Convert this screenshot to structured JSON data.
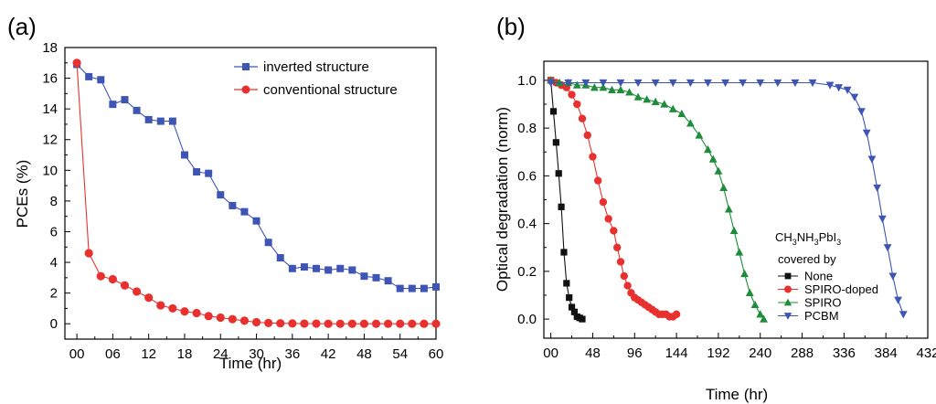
{
  "chart_data": [
    {
      "panel_label": "(a)",
      "type": "line",
      "xlabel": "Time (hr)",
      "ylabel": "PCEs (%)",
      "xlim": [
        -2,
        60
      ],
      "ylim": [
        -1,
        18
      ],
      "xticks": [
        "00",
        "06",
        "12",
        "18",
        "24",
        "30",
        "36",
        "42",
        "48",
        "54",
        "60"
      ],
      "yticks": [
        "0",
        "2",
        "4",
        "6",
        "8",
        "10",
        "12",
        "14",
        "16",
        "18"
      ],
      "legend_position": "top-right",
      "series": [
        {
          "name": "inverted structure",
          "color": "#3F55B5",
          "marker": "square",
          "x": [
            0,
            2,
            4,
            6,
            8,
            10,
            12,
            14,
            16,
            18,
            20,
            22,
            24,
            26,
            28,
            30,
            32,
            34,
            36,
            38,
            40,
            42,
            44,
            46,
            48,
            50,
            52,
            54,
            56,
            58,
            60
          ],
          "y": [
            16.9,
            16.1,
            15.9,
            14.3,
            14.6,
            13.9,
            13.3,
            13.2,
            13.2,
            11.0,
            9.9,
            9.8,
            8.4,
            7.7,
            7.3,
            6.7,
            5.3,
            4.3,
            3.6,
            3.7,
            3.6,
            3.5,
            3.6,
            3.5,
            3.1,
            3.0,
            2.8,
            2.3,
            2.3,
            2.3,
            2.4
          ]
        },
        {
          "name": "conventional structure",
          "color": "#E8312F",
          "marker": "circle",
          "x": [
            0,
            2,
            4,
            6,
            8,
            10,
            12,
            14,
            16,
            18,
            20,
            22,
            24,
            26,
            28,
            30,
            32,
            34,
            36,
            38,
            40,
            42,
            44,
            46,
            48,
            50,
            52,
            54,
            56,
            58,
            60
          ],
          "y": [
            17.0,
            4.6,
            3.1,
            2.9,
            2.5,
            2.1,
            1.7,
            1.2,
            1.0,
            0.8,
            0.7,
            0.5,
            0.4,
            0.3,
            0.2,
            0.1,
            0.05,
            0.03,
            0.02,
            0.01,
            0.01,
            0,
            0,
            0,
            0,
            0,
            0,
            0,
            0,
            0,
            0
          ]
        }
      ]
    },
    {
      "panel_label": "(b)",
      "type": "line",
      "xlabel": "Time (hr)",
      "ylabel": "Optical degradation (norm)",
      "xlim": [
        -8,
        432
      ],
      "ylim": [
        -0.08,
        1.08
      ],
      "xticks": [
        "00",
        "48",
        "96",
        "144",
        "192",
        "240",
        "288",
        "336",
        "384",
        "432"
      ],
      "yticks": [
        "0.0",
        "0.2",
        "0.4",
        "0.6",
        "0.8",
        "1.0"
      ],
      "legend_title": "CH3NH3PbI3",
      "legend_subtitle": "covered by",
      "legend_position": "bottom-right",
      "series": [
        {
          "name": "None",
          "color": "#111111",
          "marker": "square",
          "x": [
            0,
            3,
            6,
            9,
            12,
            15,
            18,
            21,
            24,
            27,
            30,
            33,
            36
          ],
          "y": [
            1.0,
            0.87,
            0.74,
            0.61,
            0.47,
            0.28,
            0.15,
            0.09,
            0.05,
            0.03,
            0.01,
            0.005,
            0.0
          ]
        },
        {
          "name": "SPIRO-doped",
          "color": "#E8312F",
          "marker": "circle",
          "x": [
            0,
            6,
            12,
            18,
            24,
            30,
            36,
            42,
            48,
            54,
            60,
            66,
            72,
            76,
            80,
            84,
            88,
            92,
            96,
            100,
            104,
            108,
            112,
            116,
            120,
            124,
            128,
            132,
            136,
            140,
            144
          ],
          "y": [
            1.0,
            0.99,
            0.98,
            0.97,
            0.94,
            0.9,
            0.84,
            0.77,
            0.68,
            0.58,
            0.49,
            0.42,
            0.37,
            0.3,
            0.24,
            0.18,
            0.14,
            0.11,
            0.09,
            0.08,
            0.07,
            0.06,
            0.05,
            0.04,
            0.03,
            0.02,
            0.02,
            0.02,
            0.01,
            0.01,
            0.02
          ]
        },
        {
          "name": "SPIRO",
          "color": "#1E8C3A",
          "marker": "triangle-up",
          "x": [
            0,
            10,
            20,
            30,
            40,
            50,
            60,
            70,
            80,
            90,
            100,
            110,
            120,
            130,
            140,
            150,
            160,
            170,
            180,
            186,
            192,
            198,
            204,
            210,
            216,
            222,
            228,
            234,
            240,
            244
          ],
          "y": [
            1.0,
            0.99,
            0.99,
            0.98,
            0.98,
            0.97,
            0.97,
            0.96,
            0.96,
            0.95,
            0.93,
            0.92,
            0.91,
            0.9,
            0.88,
            0.86,
            0.82,
            0.77,
            0.71,
            0.67,
            0.62,
            0.55,
            0.46,
            0.37,
            0.28,
            0.19,
            0.11,
            0.06,
            0.02,
            0.0
          ]
        },
        {
          "name": "PCBM",
          "color": "#3F55B5",
          "marker": "triangle-down",
          "x": [
            0,
            20,
            40,
            60,
            80,
            100,
            120,
            140,
            160,
            180,
            200,
            220,
            240,
            260,
            280,
            300,
            320,
            330,
            340,
            348,
            356,
            362,
            368,
            374,
            380,
            386,
            392,
            398,
            404
          ],
          "y": [
            0.99,
            0.99,
            0.99,
            0.99,
            0.99,
            0.99,
            0.99,
            0.99,
            0.99,
            0.99,
            0.99,
            0.99,
            0.99,
            0.99,
            0.99,
            0.99,
            0.98,
            0.97,
            0.96,
            0.93,
            0.87,
            0.78,
            0.67,
            0.55,
            0.42,
            0.3,
            0.18,
            0.08,
            0.02
          ]
        }
      ]
    }
  ]
}
